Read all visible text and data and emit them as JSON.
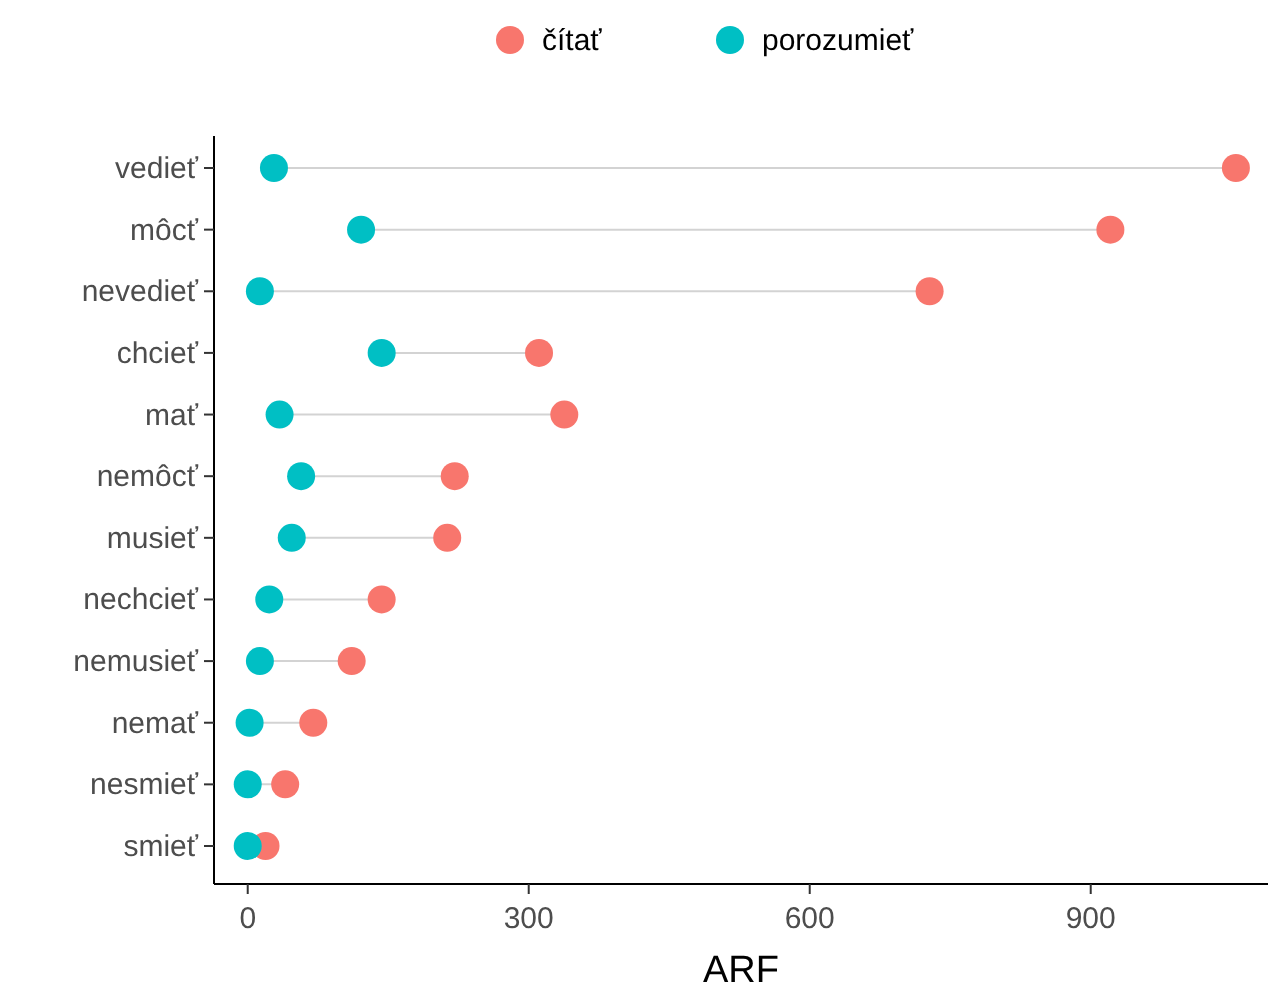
{
  "chart_data": {
    "type": "scatter",
    "orientation": "horizontal",
    "xlabel": "ARF",
    "categories": [
      "vedieť",
      "môcť",
      "nevedieť",
      "chcieť",
      "mať",
      "nemôcť",
      "musieť",
      "nechcieť",
      "nemusieť",
      "nemať",
      "nesmieť",
      "smieť"
    ],
    "series": [
      {
        "name": "čítať",
        "color": "#f8766d",
        "values": [
          1055,
          921,
          728,
          311,
          338,
          221,
          213,
          143,
          111,
          70,
          40,
          19
        ]
      },
      {
        "name": "porozumieť",
        "color": "#00bfc4",
        "values": [
          28,
          121,
          13,
          143,
          34,
          57,
          47,
          23,
          13,
          2,
          0,
          0
        ]
      }
    ],
    "xlim": [
      -36,
      1085
    ],
    "xticks": [
      0,
      300,
      600,
      900
    ],
    "legend": "top",
    "marker": "circle",
    "grid": false
  }
}
